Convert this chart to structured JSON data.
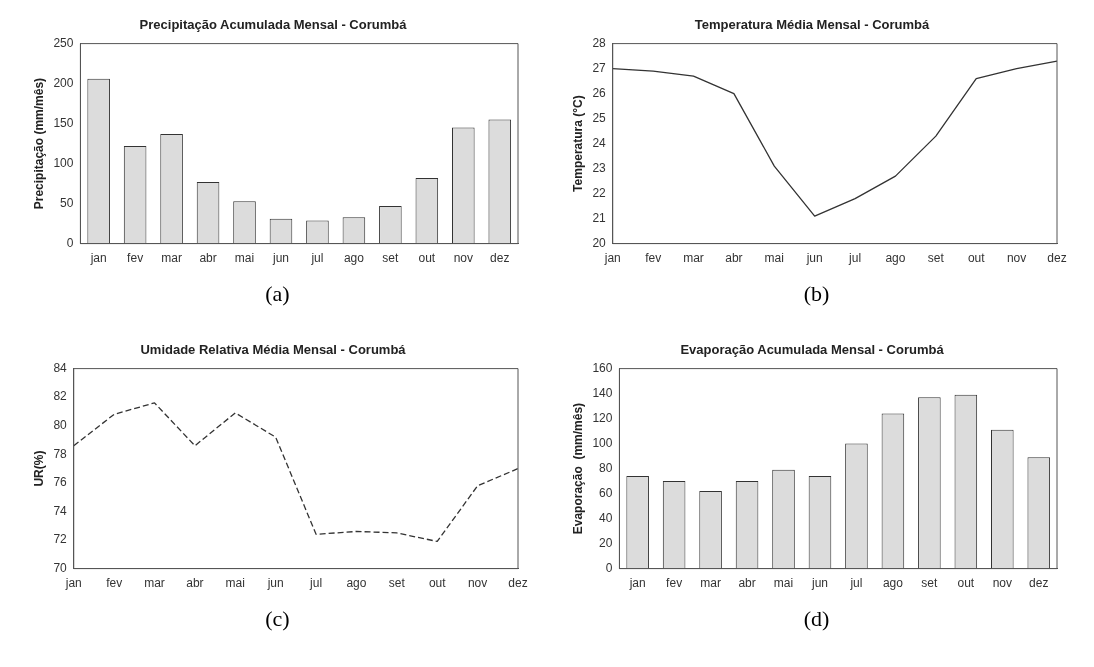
{
  "chart_data": [
    {
      "type": "bar",
      "title": "Precipitação Acumulada Mensal - Corumbá",
      "ylabel": "Precipitação (mm/mês)",
      "categories": [
        "jan",
        "fev",
        "mar",
        "abr",
        "mai",
        "jun",
        "jul",
        "ago",
        "set",
        "out",
        "nov",
        "dez"
      ],
      "values": [
        206,
        122,
        137,
        77,
        53,
        31,
        29,
        33,
        47,
        82,
        145,
        155
      ],
      "color": "#dcdcdc",
      "ylim": [
        0,
        250
      ],
      "yticks": [
        0,
        50,
        100,
        150,
        200,
        250
      ],
      "annotations": [
        "(a)"
      ]
    },
    {
      "type": "line",
      "title": "Temperatura Média Mensal - Corumbá",
      "ylabel": "Temperatura (°C)",
      "categories": [
        "jan",
        "fev",
        "mar",
        "abr",
        "mai",
        "jun",
        "jul",
        "ago",
        "set",
        "out",
        "nov",
        "dez"
      ],
      "values": [
        27.0,
        26.9,
        26.7,
        26.0,
        23.1,
        21.1,
        21.8,
        22.7,
        24.3,
        26.6,
        27.0,
        27.3
      ],
      "color": "#333333",
      "ylim": [
        20,
        28
      ],
      "yticks": [
        20,
        21,
        22,
        23,
        24,
        25,
        26,
        27,
        28
      ],
      "marker": "none",
      "line_style": "solid",
      "annotations": [
        "(b)"
      ]
    },
    {
      "type": "line",
      "title": "Umidade Relativa Média Mensal - Corumbá",
      "ylabel": "UR(%)",
      "categories": [
        "jan",
        "fev",
        "mar",
        "abr",
        "mai",
        "jun",
        "jul",
        "ago",
        "set",
        "out",
        "nov",
        "dez"
      ],
      "values": [
        78.6,
        80.8,
        81.6,
        78.6,
        80.9,
        79.2,
        72.4,
        72.6,
        72.5,
        71.9,
        75.8,
        77.0
      ],
      "color": "#333333",
      "ylim": [
        70,
        84
      ],
      "yticks": [
        70,
        72,
        74,
        76,
        78,
        80,
        82,
        84
      ],
      "marker": "none",
      "line_style": "dashed",
      "annotations": [
        "(c)"
      ]
    },
    {
      "type": "bar",
      "title": "Evaporação Acumulada Mensal - Corumbá",
      "ylabel": "Evaporação  (mm/mês)",
      "categories": [
        "jan",
        "fev",
        "mar",
        "abr",
        "mai",
        "jun",
        "jul",
        "ago",
        "set",
        "out",
        "nov",
        "dez"
      ],
      "values": [
        74,
        70,
        62,
        70,
        79,
        74,
        100,
        124,
        137,
        139,
        111,
        89
      ],
      "color": "#dcdcdc",
      "ylim": [
        0,
        160
      ],
      "yticks": [
        0,
        20,
        40,
        60,
        80,
        100,
        120,
        140,
        160
      ],
      "annotations": [
        "(d)"
      ]
    }
  ]
}
